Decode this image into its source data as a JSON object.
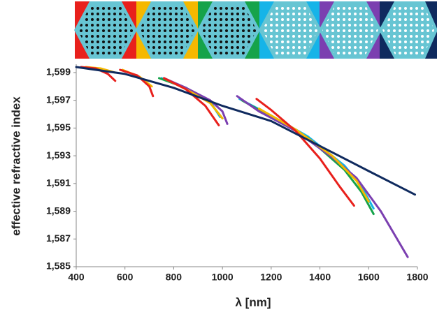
{
  "chart_data": {
    "type": "line",
    "x_label": "λ [nm]",
    "y_label": "effective refractive index",
    "xlim": [
      400,
      1800
    ],
    "xticks": [
      400,
      600,
      800,
      1000,
      1200,
      1400,
      1600,
      1800
    ],
    "ylim": [
      1.585,
      1.5995
    ],
    "yticks": [
      {
        "value": 1.585,
        "label": "1,585"
      },
      {
        "value": 1.587,
        "label": "1,587"
      },
      {
        "value": 1.589,
        "label": "1,589"
      },
      {
        "value": 1.591,
        "label": "1,591"
      },
      {
        "value": 1.593,
        "label": "1,593"
      },
      {
        "value": 1.595,
        "label": "1,595"
      },
      {
        "value": 1.597,
        "label": "1,597"
      },
      {
        "value": 1.599,
        "label": "1,599"
      }
    ],
    "grid": false,
    "series": [
      {
        "color": "#16b4e8",
        "x": [
          750,
          850,
          950,
          990,
          null,
          1070,
          1200,
          1350,
          1500,
          1570,
          1620
        ],
        "values": [
          1.5986,
          1.5979,
          1.5969,
          1.5958,
          null,
          1.5971,
          1.5959,
          1.5944,
          1.5923,
          1.5908,
          1.5892
        ]
      },
      {
        "color": "#16a34a",
        "x": [
          740,
          850,
          950,
          1000,
          null,
          1080,
          1200,
          1350,
          1500,
          1570,
          1620
        ],
        "values": [
          1.5986,
          1.5979,
          1.5968,
          1.5957,
          null,
          1.597,
          1.5958,
          1.5943,
          1.592,
          1.5904,
          1.5888
        ]
      },
      {
        "color": "#7b3fb0",
        "x": [
          760,
          850,
          950,
          1000,
          1020,
          null,
          1060,
          1150,
          1300,
          1450,
          1550,
          1650,
          1760
        ],
        "values": [
          1.5986,
          1.5979,
          1.597,
          1.5962,
          1.5953,
          null,
          1.5973,
          1.5962,
          1.5948,
          1.5929,
          1.5914,
          1.589,
          1.5857
        ]
      },
      {
        "color": "#f5b800",
        "x": [
          440,
          500,
          560,
          null,
          590,
          660,
          710,
          null,
          770,
          850,
          950,
          1000,
          null,
          1150,
          1300,
          1450,
          1550,
          1600
        ],
        "values": [
          1.5994,
          1.5993,
          1.599,
          null,
          1.5992,
          1.5987,
          1.598,
          null,
          1.5985,
          1.5978,
          1.5968,
          1.5957,
          null,
          1.5964,
          1.5949,
          1.593,
          1.5912,
          1.5897
        ]
      },
      {
        "color": "#e8201c",
        "x": [
          420,
          480,
          530,
          560,
          null,
          580,
          650,
          700,
          715,
          null,
          760,
          850,
          930,
          985,
          null,
          1140,
          1200,
          1300,
          1400,
          1480,
          1540
        ],
        "values": [
          1.5994,
          1.5993,
          1.5989,
          1.5984,
          null,
          1.5992,
          1.5988,
          1.598,
          1.5973,
          null,
          1.5986,
          1.5978,
          1.5966,
          1.5952,
          null,
          1.5971,
          1.5963,
          1.5948,
          1.5928,
          1.5908,
          1.5894
        ]
      },
      {
        "color": "#0f2a5e",
        "x": [
          400,
          600,
          800,
          1000,
          1200,
          1400,
          1600,
          1790
        ],
        "values": [
          1.5994,
          1.5989,
          1.5979,
          1.5966,
          1.5955,
          1.5937,
          1.5919,
          1.5902
        ]
      }
    ]
  }
}
